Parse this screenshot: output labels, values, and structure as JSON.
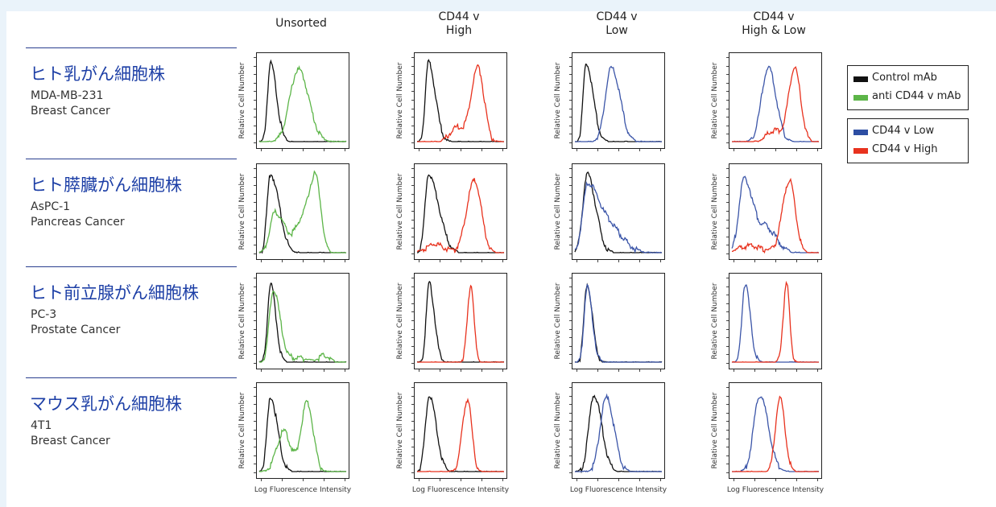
{
  "columns": [
    "Unsorted",
    "CD44 v\nHigh",
    "CD44 v\nLow",
    "CD44 v\nHigh & Low"
  ],
  "y_axis_label": "Relative Cell Number",
  "x_axis_label": "Log Fluorescence Intensity",
  "rows": [
    {
      "title": "ヒト乳がん細胞株",
      "line1": "MDA-MB-231",
      "line2": "Breast Cancer"
    },
    {
      "title": "ヒト膵臓がん細胞株",
      "line1": "AsPC-1",
      "line2": "Pancreas Cancer"
    },
    {
      "title": "ヒト前立腺がん細胞株",
      "line1": "PC-3",
      "line2": "Prostate Cancer"
    },
    {
      "title": "マウス乳がん細胞株",
      "line1": "4T1",
      "line2": "Breast Cancer"
    }
  ],
  "legend": {
    "group1": [
      {
        "label": "Control mAb",
        "color": "#111111"
      },
      {
        "label": "anti CD44 v mAb",
        "color": "#5cb548"
      }
    ],
    "group2": [
      {
        "label": "CD44 v Low",
        "color": "#2d4ea3"
      },
      {
        "label": "CD44 v High",
        "color": "#e8321e"
      }
    ]
  },
  "colors": {
    "control": "#111111",
    "anti": "#5cb548",
    "low": "#3b55a8",
    "high": "#e8321e"
  },
  "panels": [
    [
      {
        "curves": [
          {
            "series": "control",
            "peaks": [
              [
                0.13,
                0.95,
                0.035,
                0.07
              ]
            ]
          },
          {
            "series": "anti",
            "peaks": [
              [
                0.45,
                0.88,
                0.1,
                0.12
              ]
            ]
          }
        ]
      },
      {
        "curves": [
          {
            "series": "control",
            "peaks": [
              [
                0.13,
                0.96,
                0.035,
                0.08
              ]
            ]
          },
          {
            "series": "high",
            "peaks": [
              [
                0.7,
                0.9,
                0.08,
                0.07
              ],
              [
                0.45,
                0.18,
                0.08,
                0.08
              ]
            ]
          }
        ]
      },
      {
        "curves": [
          {
            "series": "control",
            "peaks": [
              [
                0.13,
                0.95,
                0.035,
                0.08
              ]
            ]
          },
          {
            "series": "low",
            "peaks": [
              [
                0.42,
                0.9,
                0.07,
                0.1
              ]
            ]
          }
        ]
      },
      {
        "curves": [
          {
            "series": "low",
            "peaks": [
              [
                0.42,
                0.9,
                0.08,
                0.09
              ]
            ]
          },
          {
            "series": "high",
            "peaks": [
              [
                0.72,
                0.9,
                0.07,
                0.07
              ],
              [
                0.48,
                0.15,
                0.08,
                0.08
              ]
            ]
          }
        ]
      }
    ],
    [
      {
        "curves": [
          {
            "series": "control",
            "peaks": [
              [
                0.13,
                0.95,
                0.04,
                0.1
              ]
            ]
          },
          {
            "series": "anti",
            "peaks": [
              [
                0.65,
                0.88,
                0.07,
                0.06
              ],
              [
                0.18,
                0.5,
                0.06,
                0.12
              ],
              [
                0.5,
                0.4,
                0.08,
                0.08
              ]
            ]
          }
        ]
      },
      {
        "curves": [
          {
            "series": "control",
            "peaks": [
              [
                0.13,
                0.95,
                0.04,
                0.12
              ]
            ]
          },
          {
            "series": "high",
            "peaks": [
              [
                0.66,
                0.88,
                0.09,
                0.08
              ],
              [
                0.2,
                0.12,
                0.1,
                0.12
              ]
            ]
          }
        ]
      },
      {
        "curves": [
          {
            "series": "control",
            "peaks": [
              [
                0.14,
                0.95,
                0.05,
                0.1
              ]
            ]
          },
          {
            "series": "low",
            "peaks": [
              [
                0.15,
                0.85,
                0.06,
                0.15
              ],
              [
                0.45,
                0.22,
                0.1,
                0.15
              ]
            ]
          }
        ]
      },
      {
        "curves": [
          {
            "series": "low",
            "peaks": [
              [
                0.14,
                0.9,
                0.06,
                0.1
              ],
              [
                0.4,
                0.3,
                0.1,
                0.12
              ]
            ]
          },
          {
            "series": "high",
            "peaks": [
              [
                0.66,
                0.88,
                0.08,
                0.07
              ],
              [
                0.2,
                0.1,
                0.12,
                0.15
              ]
            ]
          }
        ]
      }
    ],
    [
      {
        "curves": [
          {
            "series": "control",
            "peaks": [
              [
                0.13,
                0.95,
                0.035,
                0.06
              ]
            ]
          },
          {
            "series": "anti",
            "peaks": [
              [
                0.16,
                0.88,
                0.045,
                0.08
              ],
              [
                0.75,
                0.1,
                0.06,
                0.06
              ],
              [
                0.45,
                0.07,
                0.1,
                0.1
              ]
            ]
          }
        ]
      },
      {
        "curves": [
          {
            "series": "control",
            "peaks": [
              [
                0.14,
                0.95,
                0.035,
                0.06
              ]
            ]
          },
          {
            "series": "high",
            "peaks": [
              [
                0.62,
                0.95,
                0.04,
                0.035
              ]
            ]
          }
        ]
      },
      {
        "curves": [
          {
            "series": "control",
            "peaks": [
              [
                0.14,
                0.95,
                0.035,
                0.06
              ]
            ]
          },
          {
            "series": "low",
            "peaks": [
              [
                0.14,
                0.92,
                0.035,
                0.06
              ]
            ]
          }
        ]
      },
      {
        "curves": [
          {
            "series": "low",
            "peaks": [
              [
                0.15,
                0.95,
                0.035,
                0.06
              ]
            ]
          },
          {
            "series": "high",
            "peaks": [
              [
                0.63,
                0.95,
                0.04,
                0.035
              ]
            ]
          }
        ]
      }
    ],
    [
      {
        "curves": [
          {
            "series": "control",
            "peaks": [
              [
                0.13,
                0.9,
                0.04,
                0.08
              ]
            ]
          },
          {
            "series": "anti",
            "peaks": [
              [
                0.55,
                0.85,
                0.07,
                0.07
              ],
              [
                0.28,
                0.5,
                0.08,
                0.08
              ]
            ]
          }
        ]
      },
      {
        "curves": [
          {
            "series": "control",
            "peaks": [
              [
                0.14,
                0.93,
                0.045,
                0.08
              ]
            ]
          },
          {
            "series": "high",
            "peaks": [
              [
                0.58,
                0.88,
                0.06,
                0.05
              ]
            ]
          }
        ]
      },
      {
        "curves": [
          {
            "series": "control",
            "peaks": [
              [
                0.22,
                0.93,
                0.06,
                0.09
              ]
            ]
          },
          {
            "series": "low",
            "peaks": [
              [
                0.36,
                0.9,
                0.07,
                0.09
              ]
            ]
          }
        ]
      },
      {
        "curves": [
          {
            "series": "low",
            "peaks": [
              [
                0.32,
                0.93,
                0.07,
                0.1
              ]
            ]
          },
          {
            "series": "high",
            "peaks": [
              [
                0.55,
                0.9,
                0.05,
                0.06
              ]
            ]
          }
        ]
      }
    ]
  ]
}
